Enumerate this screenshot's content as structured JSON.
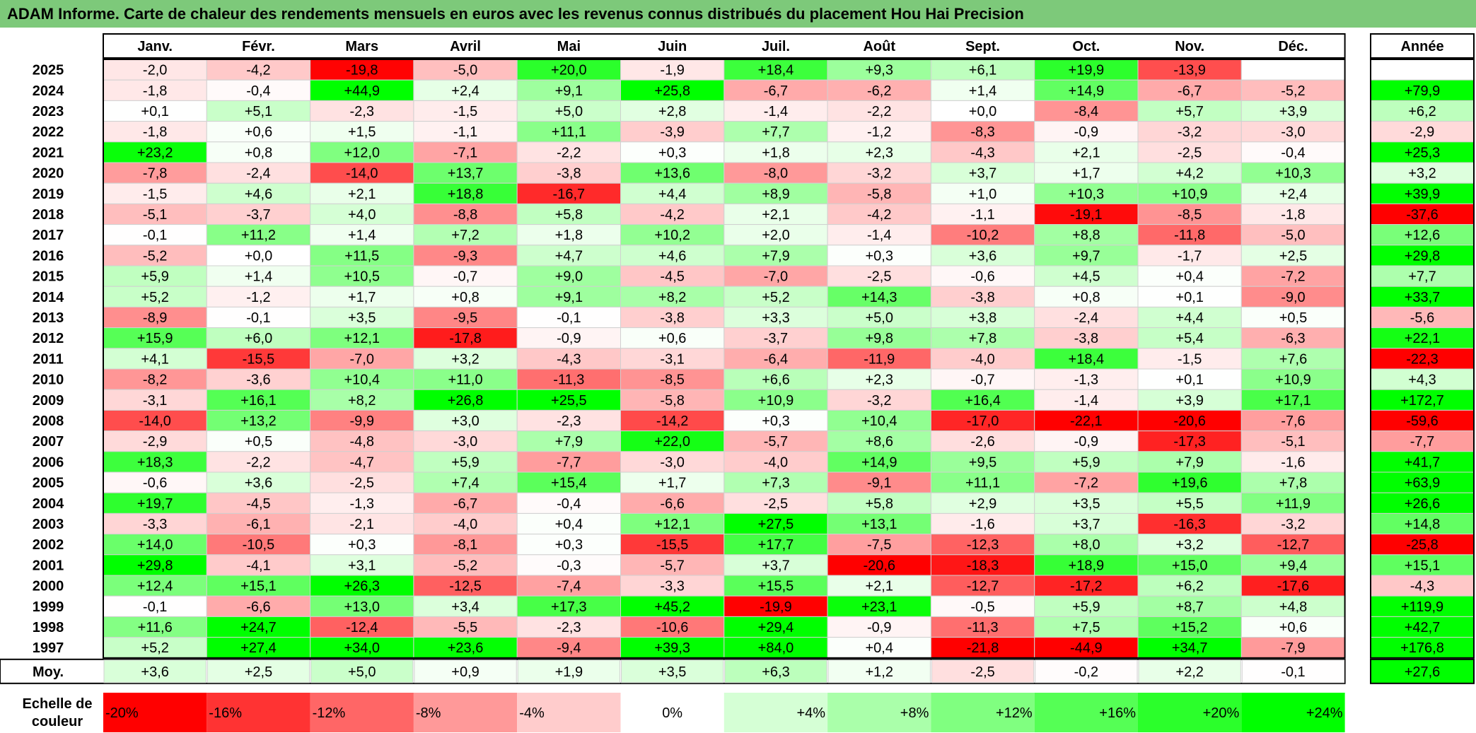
{
  "title": "ADAM Informe. Carte de chaleur des rendements mensuels en euros avec les revenus connus distribués du placement Hou Hai Precision",
  "chart_data": {
    "type": "heatmap",
    "months": [
      "Janv.",
      "Févr.",
      "Mars",
      "Avril",
      "Mai",
      "Juin",
      "Juil.",
      "Août",
      "Sept.",
      "Oct.",
      "Nov.",
      "Déc."
    ],
    "year_header": "Année",
    "rows": [
      {
        "year": "2025",
        "values": [
          -2.0,
          -4.2,
          -19.8,
          -5.0,
          20.0,
          -1.9,
          18.4,
          9.3,
          6.1,
          19.9,
          -13.9,
          null
        ],
        "annual": null
      },
      {
        "year": "2024",
        "values": [
          -1.8,
          -0.4,
          44.9,
          2.4,
          9.1,
          25.8,
          -6.7,
          -6.2,
          1.4,
          14.9,
          -6.7,
          -5.2
        ],
        "annual": 79.9
      },
      {
        "year": "2023",
        "values": [
          0.1,
          5.1,
          -2.3,
          -1.5,
          5.0,
          2.8,
          -1.4,
          -2.2,
          0.0,
          -8.4,
          5.7,
          3.9
        ],
        "annual": 6.2
      },
      {
        "year": "2022",
        "values": [
          -1.8,
          0.6,
          1.5,
          -1.1,
          11.1,
          -3.9,
          7.7,
          -1.2,
          -8.3,
          -0.9,
          -3.2,
          -3.0
        ],
        "annual": -2.9
      },
      {
        "year": "2021",
        "values": [
          23.2,
          0.8,
          12.0,
          -7.1,
          -2.2,
          0.3,
          1.8,
          2.3,
          -4.3,
          2.1,
          -2.5,
          -0.4
        ],
        "annual": 25.3
      },
      {
        "year": "2020",
        "values": [
          -7.8,
          -2.4,
          -14.0,
          13.7,
          -3.8,
          13.6,
          -8.0,
          -3.2,
          3.7,
          1.7,
          4.2,
          10.3
        ],
        "annual": 3.2
      },
      {
        "year": "2019",
        "values": [
          -1.5,
          4.6,
          2.1,
          18.8,
          -16.7,
          4.4,
          8.9,
          -5.8,
          1.0,
          10.3,
          10.9,
          2.4
        ],
        "annual": 39.9
      },
      {
        "year": "2018",
        "values": [
          -5.1,
          -3.7,
          4.0,
          -8.8,
          5.8,
          -4.2,
          2.1,
          -4.2,
          -1.1,
          -19.1,
          -8.5,
          -1.8
        ],
        "annual": -37.6
      },
      {
        "year": "2017",
        "values": [
          -0.1,
          11.2,
          1.4,
          7.2,
          1.8,
          10.2,
          2.0,
          -1.4,
          -10.2,
          8.8,
          -11.8,
          -5.0
        ],
        "annual": 12.6
      },
      {
        "year": "2016",
        "values": [
          -5.2,
          0.0,
          11.5,
          -9.3,
          4.7,
          4.6,
          7.9,
          0.3,
          3.6,
          9.7,
          -1.7,
          2.5
        ],
        "annual": 29.8
      },
      {
        "year": "2015",
        "values": [
          5.9,
          1.4,
          10.5,
          -0.7,
          9.0,
          -4.5,
          -7.0,
          -2.5,
          -0.6,
          4.5,
          0.4,
          -7.2
        ],
        "annual": 7.7
      },
      {
        "year": "2014",
        "values": [
          5.2,
          -1.2,
          1.7,
          0.8,
          9.1,
          8.2,
          5.2,
          14.3,
          -3.8,
          0.8,
          0.1,
          -9.0
        ],
        "annual": 33.7
      },
      {
        "year": "2013",
        "values": [
          -8.9,
          -0.1,
          3.5,
          -9.5,
          -0.1,
          -3.8,
          3.3,
          5.0,
          3.8,
          -2.4,
          4.4,
          0.5
        ],
        "annual": -5.6
      },
      {
        "year": "2012",
        "values": [
          15.9,
          6.0,
          12.1,
          -17.8,
          -0.9,
          0.6,
          -3.7,
          9.8,
          7.8,
          -3.8,
          5.4,
          -6.3
        ],
        "annual": 22.1
      },
      {
        "year": "2011",
        "values": [
          4.1,
          -15.5,
          -7.0,
          3.2,
          -4.3,
          -3.1,
          -6.4,
          -11.9,
          -4.0,
          18.4,
          -1.5,
          7.6
        ],
        "annual": -22.3
      },
      {
        "year": "2010",
        "values": [
          -8.2,
          -3.6,
          10.4,
          11.0,
          -11.3,
          -8.5,
          6.6,
          2.3,
          -0.7,
          -1.3,
          0.1,
          10.9
        ],
        "annual": 4.3
      },
      {
        "year": "2009",
        "values": [
          -3.1,
          16.1,
          8.2,
          26.8,
          25.5,
          -5.8,
          10.9,
          -3.2,
          16.4,
          -1.4,
          3.9,
          17.1
        ],
        "annual": 172.7
      },
      {
        "year": "2008",
        "values": [
          -14.0,
          13.2,
          -9.9,
          3.0,
          -2.3,
          -14.2,
          0.3,
          10.4,
          -17.0,
          -22.1,
          -20.6,
          -7.6
        ],
        "annual": -59.6
      },
      {
        "year": "2007",
        "values": [
          -2.9,
          0.5,
          -4.8,
          -3.0,
          7.9,
          22.0,
          -5.7,
          8.6,
          -2.6,
          -0.9,
          -17.3,
          -5.1
        ],
        "annual": -7.7
      },
      {
        "year": "2006",
        "values": [
          18.3,
          -2.2,
          -4.7,
          5.9,
          -7.7,
          -3.0,
          -4.0,
          14.9,
          9.5,
          5.9,
          7.9,
          -1.6
        ],
        "annual": 41.7
      },
      {
        "year": "2005",
        "values": [
          -0.6,
          3.6,
          -2.5,
          7.4,
          15.4,
          1.7,
          7.3,
          -9.1,
          11.1,
          -7.2,
          19.6,
          7.8
        ],
        "annual": 63.9
      },
      {
        "year": "2004",
        "values": [
          19.7,
          -4.5,
          -1.3,
          -6.7,
          -0.4,
          -6.6,
          -2.5,
          5.8,
          2.9,
          3.5,
          5.5,
          11.9
        ],
        "annual": 26.6
      },
      {
        "year": "2003",
        "values": [
          -3.3,
          -6.1,
          -2.1,
          -4.0,
          0.4,
          12.1,
          27.5,
          13.1,
          -1.6,
          3.7,
          -16.3,
          -3.2
        ],
        "annual": 14.8
      },
      {
        "year": "2002",
        "values": [
          14.0,
          -10.5,
          0.3,
          -8.1,
          0.3,
          -15.5,
          17.7,
          -7.5,
          -12.3,
          8.0,
          3.2,
          -12.7
        ],
        "annual": -25.8
      },
      {
        "year": "2001",
        "values": [
          29.8,
          -4.1,
          3.1,
          -5.2,
          -0.3,
          -5.7,
          3.7,
          -20.6,
          -18.3,
          18.9,
          15.0,
          9.4
        ],
        "annual": 15.1
      },
      {
        "year": "2000",
        "values": [
          12.4,
          15.1,
          26.3,
          -12.5,
          -7.4,
          -3.3,
          15.5,
          2.1,
          -12.7,
          -17.2,
          6.2,
          -17.6
        ],
        "annual": -4.3
      },
      {
        "year": "1999",
        "values": [
          -0.1,
          -6.6,
          13.0,
          3.4,
          17.3,
          45.2,
          -19.9,
          23.1,
          -0.5,
          5.9,
          8.7,
          4.8
        ],
        "annual": 119.9
      },
      {
        "year": "1998",
        "values": [
          11.6,
          24.7,
          -12.4,
          -5.5,
          -2.3,
          -10.6,
          29.4,
          -0.9,
          -11.3,
          7.5,
          15.2,
          0.6
        ],
        "annual": 42.7
      },
      {
        "year": "1997",
        "values": [
          5.2,
          27.4,
          34.0,
          23.6,
          -9.4,
          39.3,
          84.0,
          0.4,
          -21.8,
          -44.9,
          34.7,
          -7.9
        ],
        "annual": 176.8
      }
    ],
    "average": {
      "label": "Moy.",
      "values": [
        3.6,
        2.5,
        5.0,
        0.9,
        1.9,
        3.5,
        6.3,
        1.2,
        -2.5,
        -0.2,
        2.2,
        -0.1
      ],
      "annual": 27.6
    },
    "scale": {
      "label_line1": "Echelle de",
      "label_line2": "couleur",
      "steps": [
        "-20%",
        "-16%",
        "-12%",
        "-8%",
        "-4%",
        "0%",
        "+4%",
        "+8%",
        "+12%",
        "+16%",
        "+20%",
        "+24%"
      ],
      "step_values": [
        -20,
        -16,
        -12,
        -8,
        -4,
        0,
        4,
        8,
        12,
        16,
        20,
        24
      ]
    },
    "colors": {
      "negative": "#ff0000",
      "positive": "#00ff00",
      "neutral": "#ffffff",
      "title_bg": "#7dc97a"
    }
  }
}
